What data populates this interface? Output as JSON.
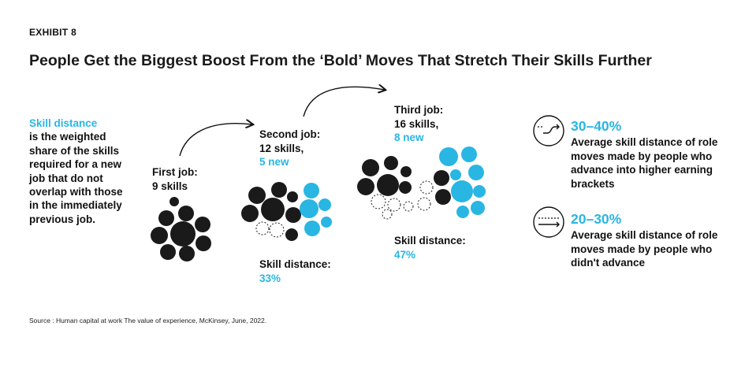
{
  "exhibit_label": "EXHIBIT 8",
  "title": "People Get the Biggest Boost From the ‘Bold’ Moves That Stretch Their Skills Further",
  "definition": {
    "term": "Skill distance",
    "text": "is the weighted share of the skills required for a new job that do not overlap with those in the immediately previous job."
  },
  "jobs": [
    {
      "title": "First job:",
      "skills_text": "9 skills",
      "new_text": "",
      "distance_label": "",
      "distance_value": "",
      "skills": 9,
      "new": 0
    },
    {
      "title": "Second job:",
      "skills_text": "12 skills,",
      "new_text": "5 new",
      "distance_label": "Skill distance:",
      "distance_value": "33%",
      "skills": 12,
      "new": 5
    },
    {
      "title": "Third job:",
      "skills_text": "16 skills,",
      "new_text": "8 new",
      "distance_label": "Skill distance:",
      "distance_value": "47%",
      "skills": 16,
      "new": 8
    }
  ],
  "stats": [
    {
      "icon": "advance-icon",
      "percent": "30–40%",
      "description": "Average skill distance of role moves made by people who advance into higher earning brackets"
    },
    {
      "icon": "lateral-move-icon",
      "percent": "20–30%",
      "description": "Average skill distance of role moves made by people who didn't advance"
    }
  ],
  "source": "Source : Human capital at work The value of experience, McKinsey, June, 2022.",
  "colors": {
    "accent": "#29b6e3",
    "dark": "#1a1a1a",
    "dropped": "#ffffff"
  }
}
